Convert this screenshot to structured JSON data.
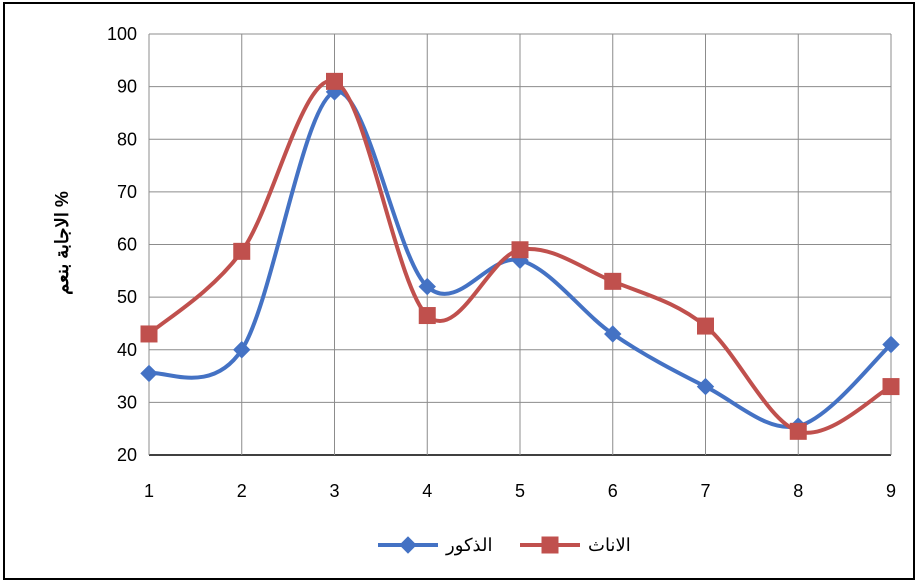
{
  "chart_data": {
    "type": "line",
    "title": "",
    "xlabel": "",
    "ylabel": "% الاجابة بنعم",
    "x": [
      1,
      2,
      3,
      4,
      5,
      6,
      7,
      8,
      9
    ],
    "x_ticks": [
      "1",
      "2",
      "3",
      "4",
      "5",
      "6",
      "7",
      "8",
      "9"
    ],
    "ylim": [
      20,
      100
    ],
    "y_ticks": [
      "20",
      "30",
      "40",
      "50",
      "60",
      "70",
      "80",
      "90",
      "100"
    ],
    "grid": true,
    "smooth": true,
    "legend_position": "bottom",
    "series": [
      {
        "name": "الذكور",
        "marker": "diamond",
        "color": "#4472C4",
        "values": [
          35.5,
          40,
          89,
          52,
          57,
          43,
          33,
          25.5,
          41
        ]
      },
      {
        "name": "الاناث",
        "marker": "square",
        "color": "#C0504D",
        "values": [
          43,
          58.7,
          91,
          46.5,
          59,
          53,
          44.5,
          24.5,
          33
        ]
      }
    ]
  }
}
